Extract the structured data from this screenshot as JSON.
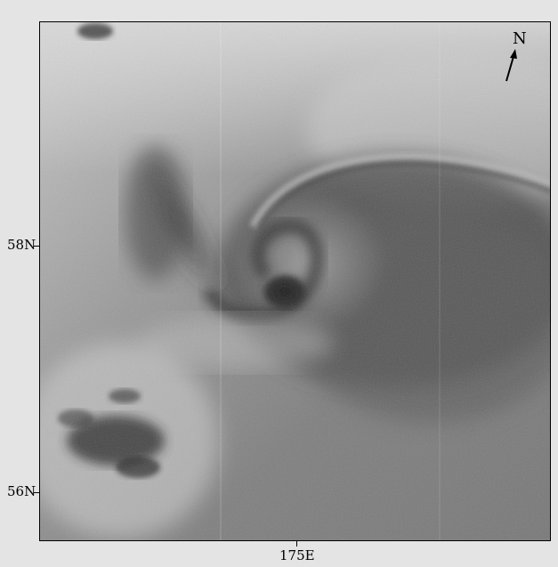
{
  "map": {
    "latitude_labels": [
      "58N",
      "56N"
    ],
    "longitude_labels": [
      "175E"
    ],
    "north_arrow_label": "N",
    "colors": {
      "background": "#e4e4e4",
      "frame": "#000000"
    }
  }
}
